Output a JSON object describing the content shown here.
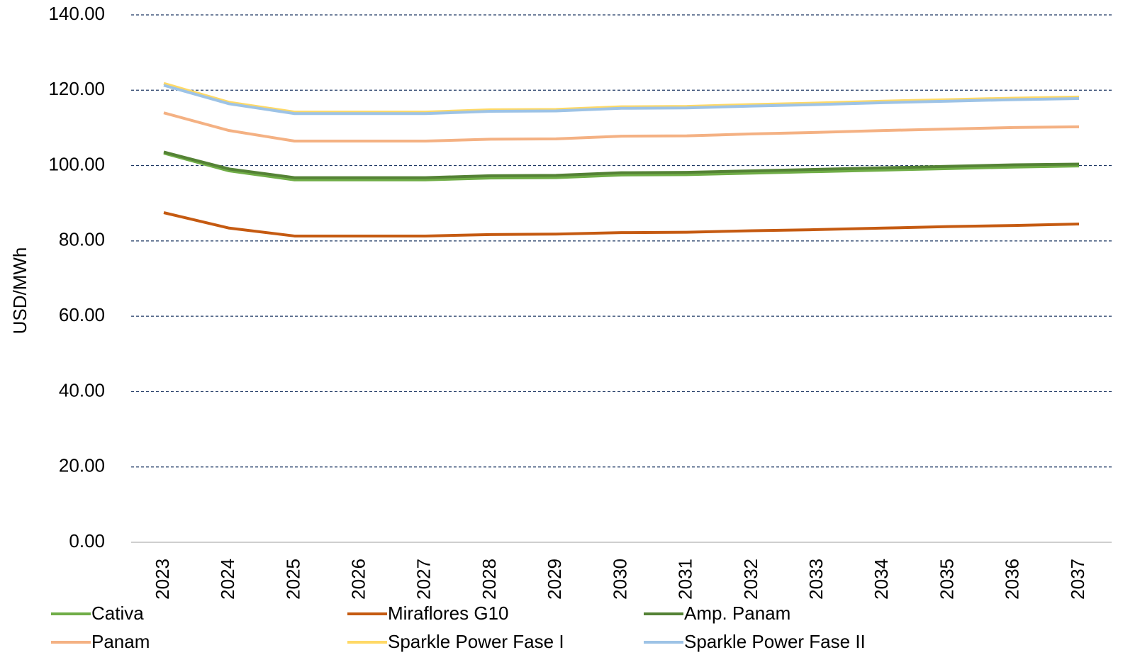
{
  "chart_data": {
    "type": "line",
    "y_label": "USD/MWh",
    "categories": [
      "2023",
      "2024",
      "2025",
      "2026",
      "2027",
      "2028",
      "2029",
      "2030",
      "2031",
      "2032",
      "2033",
      "2034",
      "2035",
      "2036",
      "2037"
    ],
    "ylim": [
      0,
      140
    ],
    "yticks": [
      {
        "value": 0,
        "label": "0.00"
      },
      {
        "value": 20,
        "label": "20.00"
      },
      {
        "value": 40,
        "label": "40.00"
      },
      {
        "value": 60,
        "label": "60.00"
      },
      {
        "value": 80,
        "label": "80.00"
      },
      {
        "value": 100,
        "label": "100.00"
      },
      {
        "value": 120,
        "label": "120.00"
      },
      {
        "value": 140,
        "label": "140.00"
      }
    ],
    "grid": true,
    "legend": "bottom",
    "series": [
      {
        "name": "Cativa",
        "color": "#70ad47",
        "values": [
          103.3,
          98.6,
          96.2,
          96.2,
          96.2,
          96.7,
          96.8,
          97.5,
          97.6,
          98.0,
          98.4,
          98.8,
          99.2,
          99.6,
          99.9
        ]
      },
      {
        "name": "Miraflores G10",
        "color": "#c55a11",
        "values": [
          87.5,
          83.4,
          81.3,
          81.3,
          81.3,
          81.7,
          81.8,
          82.2,
          82.3,
          82.7,
          83.0,
          83.4,
          83.8,
          84.1,
          84.5
        ]
      },
      {
        "name": "Amp. Panam",
        "color": "#548235",
        "values": [
          103.6,
          99.1,
          96.8,
          96.8,
          96.8,
          97.3,
          97.4,
          98.1,
          98.2,
          98.6,
          99.0,
          99.4,
          99.8,
          100.2,
          100.4
        ]
      },
      {
        "name": "Panam",
        "color": "#f4b183",
        "values": [
          114.0,
          109.3,
          106.5,
          106.5,
          106.5,
          107.0,
          107.1,
          107.8,
          107.9,
          108.4,
          108.8,
          109.3,
          109.7,
          110.1,
          110.3
        ]
      },
      {
        "name": "Sparkle Power Fase I",
        "color": "#ffd966",
        "values": [
          121.8,
          116.8,
          114.2,
          114.2,
          114.2,
          114.8,
          114.9,
          115.6,
          115.7,
          116.2,
          116.6,
          117.1,
          117.5,
          117.9,
          118.2
        ]
      },
      {
        "name": "Sparkle Power Fase II",
        "color": "#9dc3e6",
        "values": [
          121.3,
          116.4,
          113.8,
          113.8,
          113.8,
          114.4,
          114.5,
          115.2,
          115.3,
          115.8,
          116.2,
          116.7,
          117.1,
          117.5,
          117.8
        ]
      }
    ]
  }
}
